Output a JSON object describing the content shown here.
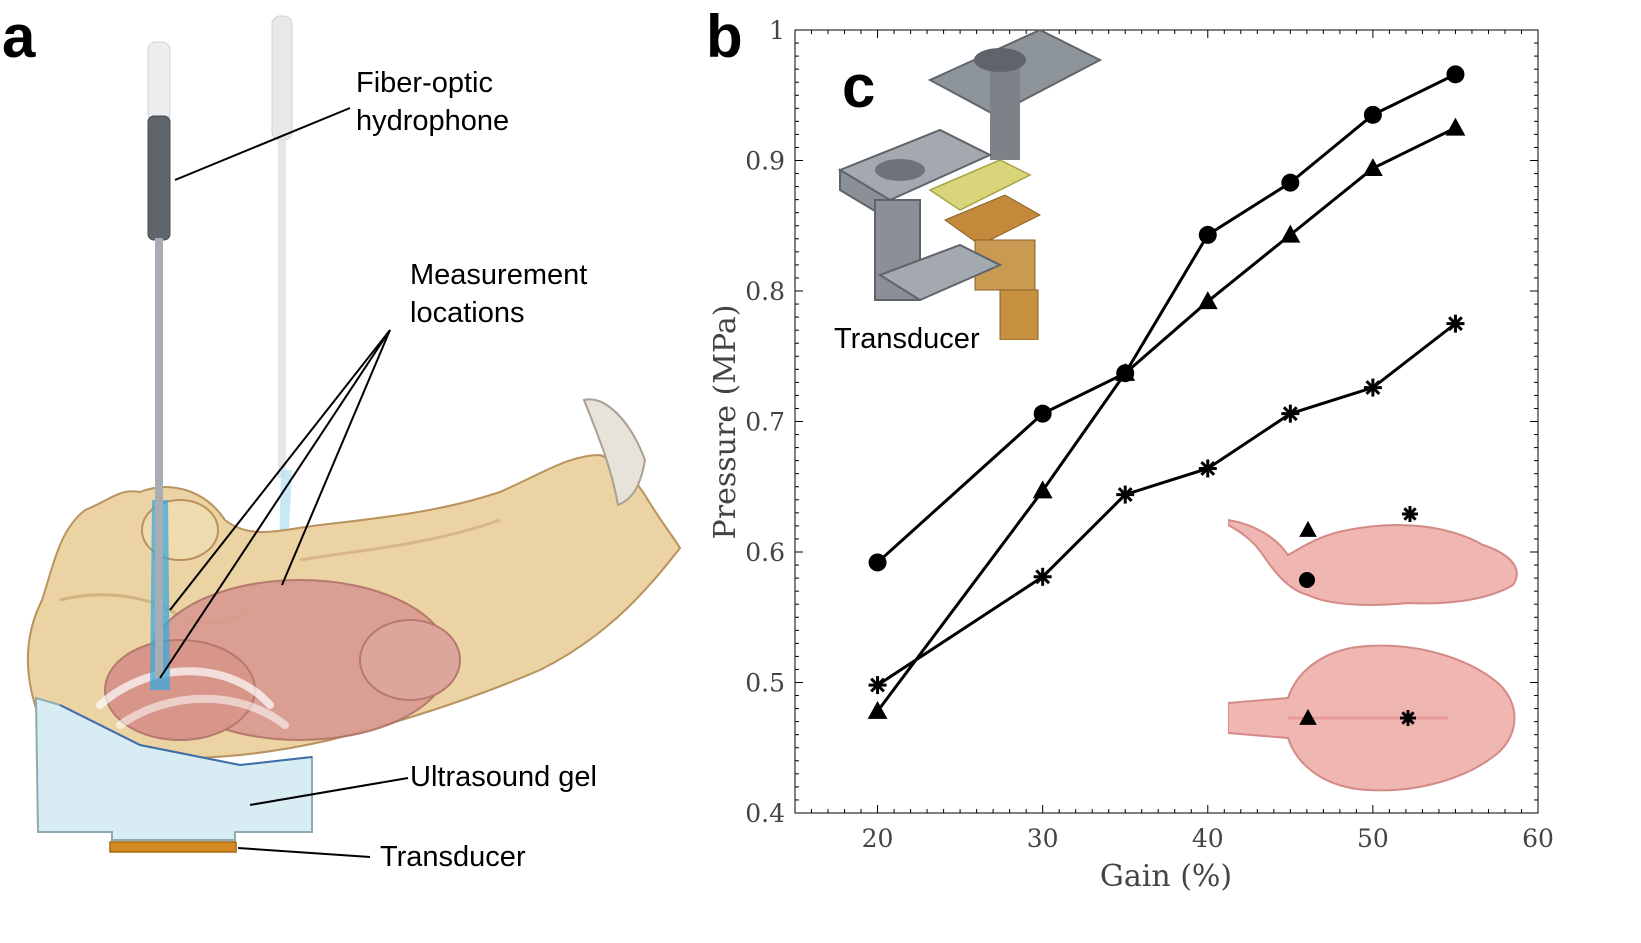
{
  "panel_labels": {
    "a": "a",
    "b": "b",
    "c": "c"
  },
  "panel_a": {
    "labels": {
      "hydrophone_line1": "Fiber-optic",
      "hydrophone_line2": "hydrophone",
      "measurement_line1": "Measurement",
      "measurement_line2": "locations",
      "gel": "Ultrasound gel",
      "transducer": "Transducer"
    }
  },
  "panel_c": {
    "transducer_label": "Transducer"
  },
  "colors": {
    "skull": "#ecd3a3",
    "skull_stroke": "#b8935d",
    "brain": "#d99a91",
    "gel": "#d8ecf4",
    "transducer": "#d58b23",
    "beam": "#4fb7e6",
    "line": "#000000",
    "brain_inset": "#efb6b2"
  },
  "chart_data": {
    "type": "line",
    "xlabel": "Gain (%)",
    "ylabel": "Pressure (MPa)",
    "xlim": [
      15,
      60
    ],
    "ylim": [
      0.4,
      1.0
    ],
    "x_ticks": [
      20,
      30,
      40,
      50,
      60
    ],
    "y_ticks": [
      0.4,
      0.5,
      0.6,
      0.7,
      0.8,
      0.9,
      1.0
    ],
    "x_tick_labels": [
      "20",
      "30",
      "40",
      "50",
      "60"
    ],
    "y_tick_labels": [
      "0.4",
      "0.5",
      "0.6",
      "0.7",
      "0.8",
      "0.9",
      "1"
    ],
    "grid": false,
    "x": [
      20,
      30,
      35,
      40,
      45,
      50,
      55
    ],
    "series": [
      {
        "marker": "circle",
        "values": [
          0.592,
          0.706,
          0.737,
          0.843,
          0.883,
          0.935,
          0.966
        ]
      },
      {
        "marker": "triangle",
        "values": [
          0.478,
          0.647,
          0.737,
          0.792,
          0.843,
          0.894,
          0.925
        ]
      },
      {
        "marker": "asterisk",
        "values": [
          0.498,
          0.581,
          0.644,
          0.664,
          0.706,
          0.726,
          0.775
        ]
      }
    ]
  }
}
